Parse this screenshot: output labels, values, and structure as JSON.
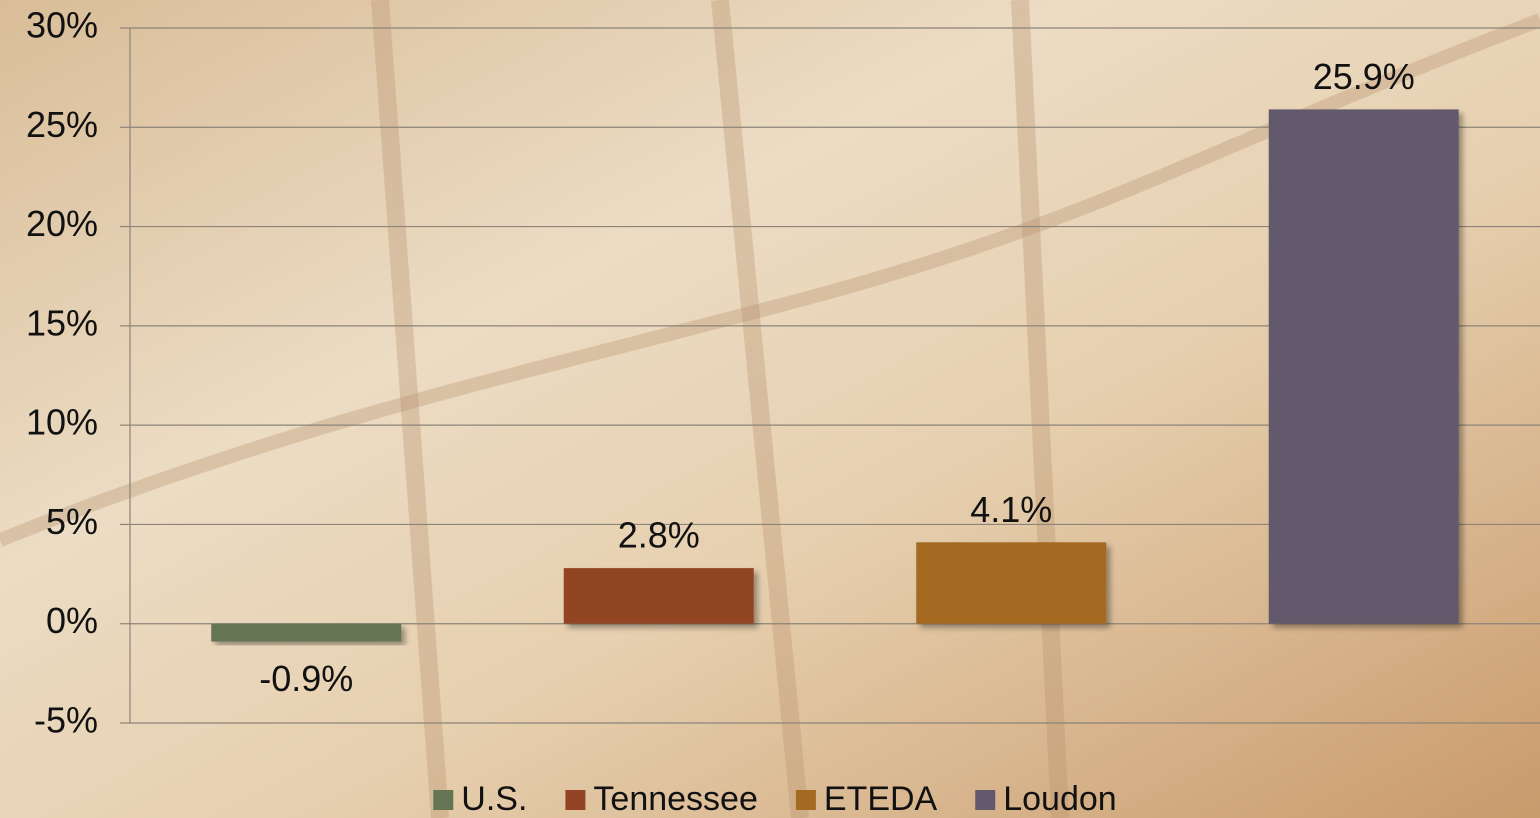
{
  "chart_data": {
    "type": "bar",
    "categories": [
      null
    ],
    "series": [
      {
        "name": "U.S.",
        "color": "#637552",
        "values": [
          -0.9
        ],
        "value_labels": [
          "-0.9%"
        ]
      },
      {
        "name": "Tennessee",
        "color": "#924424",
        "values": [
          2.8
        ],
        "value_labels": [
          "2.8%"
        ]
      },
      {
        "name": "ETEDA",
        "color": "#a46a22",
        "values": [
          4.1
        ],
        "value_labels": [
          "4.1%"
        ]
      },
      {
        "name": "Loudon",
        "color": "#625a6c",
        "values": [
          25.9
        ],
        "value_labels": [
          "25.9%"
        ]
      }
    ],
    "ylim": [
      -5,
      30
    ],
    "yticks": [
      {
        "value": -5,
        "label": "-5%"
      },
      {
        "value": 0,
        "label": "0%"
      },
      {
        "value": 5,
        "label": "5%"
      },
      {
        "value": 10,
        "label": "10%"
      },
      {
        "value": 15,
        "label": "15%"
      },
      {
        "value": 20,
        "label": "20%"
      },
      {
        "value": 25,
        "label": "25%"
      },
      {
        "value": 30,
        "label": "30%"
      }
    ],
    "grid": true,
    "legend": "bottom"
  }
}
